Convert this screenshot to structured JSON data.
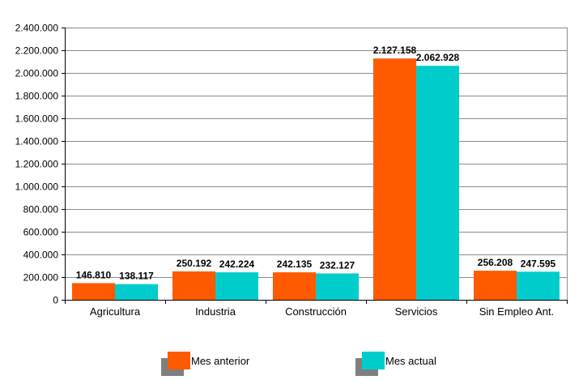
{
  "chart_data": {
    "type": "bar",
    "title": "",
    "xlabel": "",
    "ylabel": "",
    "ylim": [
      0,
      2400000
    ],
    "yticks": [
      0,
      200000,
      400000,
      600000,
      800000,
      1000000,
      1200000,
      1400000,
      1600000,
      1800000,
      2000000,
      2200000,
      2400000
    ],
    "ytick_labels": [
      "0",
      "200.000",
      "400.000",
      "600.000",
      "800.000",
      "1.000.000",
      "1.200.000",
      "1.400.000",
      "1.600.000",
      "1.800.000",
      "2.000.000",
      "2.200.000",
      "2.400.000"
    ],
    "grid": true,
    "legend_position": "bottom",
    "categories": [
      "Agricultura",
      "Industria",
      "Construcción",
      "Servicios",
      "Sin Empleo Ant."
    ],
    "series": [
      {
        "name": "Mes anterior",
        "color": "#ff5a00",
        "values": [
          146810,
          250192,
          242135,
          2127158,
          256208
        ],
        "labels": [
          "146.810",
          "250.192",
          "242.135",
          "2.127.158",
          "256.208"
        ]
      },
      {
        "name": "Mes actual",
        "color": "#00cccc",
        "values": [
          138117,
          242224,
          232127,
          2062928,
          247595
        ],
        "labels": [
          "138.117",
          "242.224",
          "232.127",
          "2.062.928",
          "247.595"
        ]
      }
    ],
    "legend_shadow_color": "#7f7f7f"
  }
}
